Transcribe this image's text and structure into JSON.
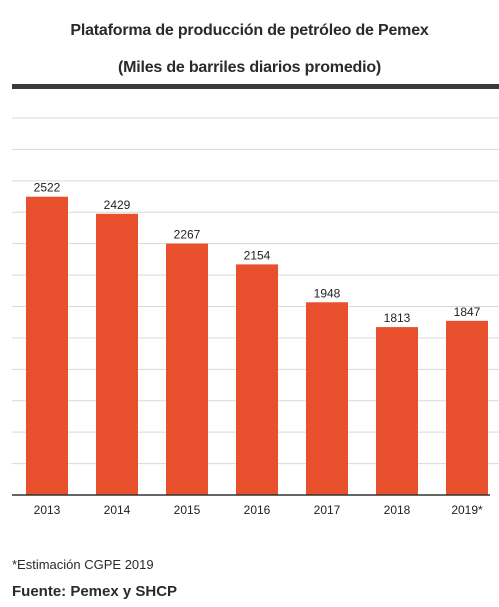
{
  "header": {
    "title": "Plataforma de producción de petróleo de Pemex",
    "subtitle": "(Miles de barriles diarios promedio)"
  },
  "footer": {
    "note": "*Estimación CGPE 2019",
    "source": "Fuente: Pemex y SHCP"
  },
  "colors": {
    "bar": "#e8502e",
    "grid": "#d9d9d9",
    "axis": "#333333"
  },
  "chart_data": {
    "type": "bar",
    "title": "Plataforma de producción de petróleo de Pemex",
    "subtitle": "(Miles de barriles diarios promedio)",
    "categories": [
      "2013",
      "2014",
      "2015",
      "2016",
      "2017",
      "2018",
      "2019*"
    ],
    "values": [
      2522,
      2429,
      2267,
      2154,
      1948,
      1813,
      1847
    ],
    "ylim": [
      900,
      2950
    ],
    "grid": true,
    "data_labels": true
  }
}
